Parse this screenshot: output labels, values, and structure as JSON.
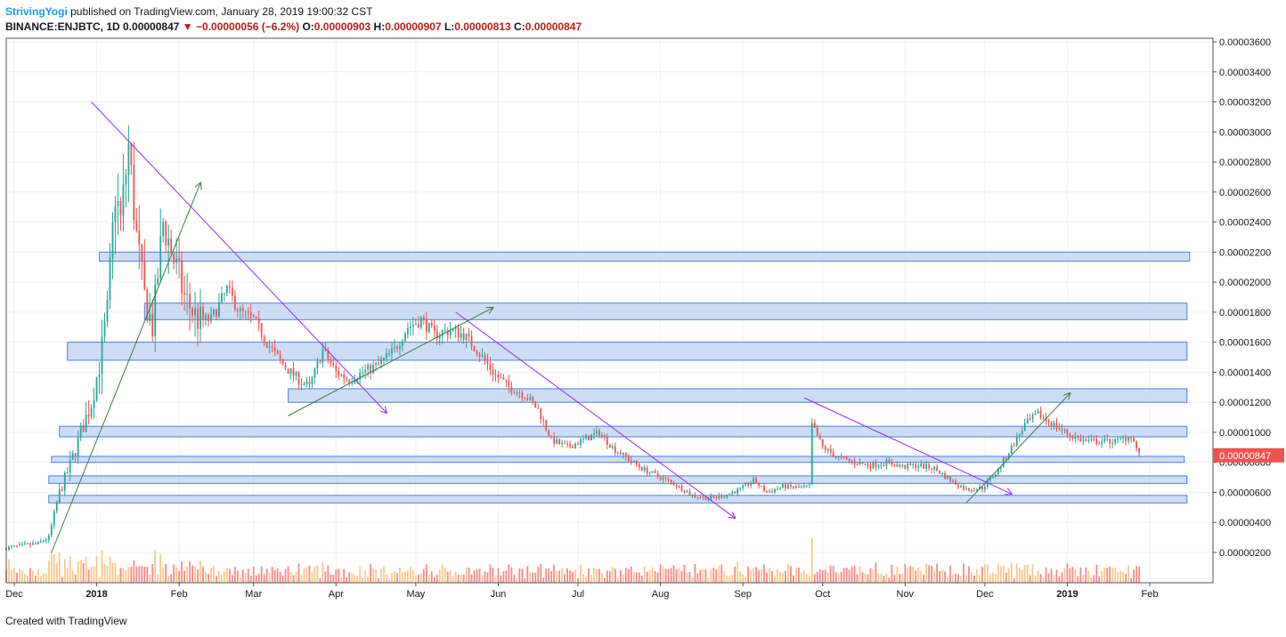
{
  "header": {
    "author": "StrivingYogi",
    "published_text": "published on TradingView.com, January 28, 2019 19:00:32 CST",
    "symbol": "BINANCE:ENJBTC, 1D",
    "last": "0.00000847",
    "change": "−0.00000056 (−6.2%)",
    "open_label": "O:",
    "open": "0.00000903",
    "high_label": "H:",
    "high": "0.00000907",
    "low_label": "L:",
    "low": "0.00000813",
    "close_label": "C:",
    "close": "0.00000847"
  },
  "footer": {
    "created_with": "Created with",
    "brand": "TradingView"
  },
  "colors": {
    "up": "#26a69a",
    "down": "#ef5350",
    "zone_fill": "#c5d7f5",
    "zone_stroke": "#4a7fdb",
    "trend": "#9c27f0",
    "arrow": "#3b7d3b",
    "price_tag": "#ef5350",
    "vol_up": "#f7c98b",
    "vol_down": "#f28b8b"
  },
  "chart_data": {
    "type": "candlestick",
    "y_axis": {
      "min": 0.0,
      "max": 3.65e-05,
      "ticks": [
        "0.00000200",
        "0.00000400",
        "0.00000600",
        "0.00000800",
        "0.00001000",
        "0.00001200",
        "0.00001400",
        "0.00001600",
        "0.00001800",
        "0.00002000",
        "0.00002200",
        "0.00002400",
        "0.00002600",
        "0.00002800",
        "0.00003000",
        "0.00003200",
        "0.00003400",
        "0.00003600"
      ],
      "tick_values": [
        2e-06,
        4e-06,
        6e-06,
        8e-06,
        1e-05,
        1.2e-05,
        1.4e-05,
        1.6e-05,
        1.8e-05,
        2e-05,
        2.2e-05,
        2.4e-05,
        2.6e-05,
        2.8e-05,
        3e-05,
        3.2e-05,
        3.4e-05,
        3.6e-05
      ]
    },
    "x_axis": {
      "labels": [
        {
          "text": "Dec",
          "date": "2017-12-01",
          "bold": false
        },
        {
          "text": "2018",
          "date": "2018-01-01",
          "bold": true
        },
        {
          "text": "Feb",
          "date": "2018-02-01",
          "bold": false
        },
        {
          "text": "Mar",
          "date": "2018-03-01",
          "bold": false
        },
        {
          "text": "Apr",
          "date": "2018-04-01",
          "bold": false
        },
        {
          "text": "May",
          "date": "2018-05-01",
          "bold": false
        },
        {
          "text": "Jun",
          "date": "2018-06-01",
          "bold": false
        },
        {
          "text": "Jul",
          "date": "2018-07-01",
          "bold": false
        },
        {
          "text": "Aug",
          "date": "2018-08-01",
          "bold": false
        },
        {
          "text": "Sep",
          "date": "2018-09-01",
          "bold": false
        },
        {
          "text": "Oct",
          "date": "2018-10-01",
          "bold": false
        },
        {
          "text": "Nov",
          "date": "2018-11-01",
          "bold": false
        },
        {
          "text": "Dec",
          "date": "2018-12-01",
          "bold": false
        },
        {
          "text": "2019",
          "date": "2019-01-01",
          "bold": true
        },
        {
          "text": "Feb",
          "date": "2019-02-01",
          "bold": false
        }
      ],
      "start_date": "2017-11-28",
      "end_date": "2019-02-22"
    },
    "price_path": [
      [
        "2017-11-28",
        2.3e-06
      ],
      [
        "2017-12-10",
        2.6e-06
      ],
      [
        "2017-12-14",
        3e-06
      ],
      [
        "2017-12-18",
        6e-06
      ],
      [
        "2017-12-22",
        7.8e-06
      ],
      [
        "2017-12-26",
        1e-05
      ],
      [
        "2017-12-30",
        1.2e-05
      ],
      [
        "2018-01-02",
        1.45e-05
      ],
      [
        "2018-01-05",
        1.8e-05
      ],
      [
        "2018-01-08",
        2.6e-05
      ],
      [
        "2018-01-10",
        2.4e-05
      ],
      [
        "2018-01-13",
        2.9e-05
      ],
      [
        "2018-01-16",
        2.3e-05
      ],
      [
        "2018-01-19",
        1.9e-05
      ],
      [
        "2018-01-22",
        1.7e-05
      ],
      [
        "2018-01-26",
        2.4e-05
      ],
      [
        "2018-01-30",
        2.15e-05
      ],
      [
        "2018-02-03",
        1.9e-05
      ],
      [
        "2018-02-08",
        1.75e-05
      ],
      [
        "2018-02-13",
        1.75e-05
      ],
      [
        "2018-02-19",
        1.95e-05
      ],
      [
        "2018-02-24",
        1.8e-05
      ],
      [
        "2018-03-01",
        1.75e-05
      ],
      [
        "2018-03-06",
        1.6e-05
      ],
      [
        "2018-03-12",
        1.45e-05
      ],
      [
        "2018-03-18",
        1.35e-05
      ],
      [
        "2018-03-22",
        1.3e-05
      ],
      [
        "2018-03-27",
        1.55e-05
      ],
      [
        "2018-04-01",
        1.4e-05
      ],
      [
        "2018-04-06",
        1.35e-05
      ],
      [
        "2018-04-11",
        1.4e-05
      ],
      [
        "2018-04-17",
        1.45e-05
      ],
      [
        "2018-04-23",
        1.55e-05
      ],
      [
        "2018-04-28",
        1.7e-05
      ],
      [
        "2018-05-03",
        1.75e-05
      ],
      [
        "2018-05-08",
        1.65e-05
      ],
      [
        "2018-05-14",
        1.68e-05
      ],
      [
        "2018-05-19",
        1.65e-05
      ],
      [
        "2018-05-24",
        1.55e-05
      ],
      [
        "2018-05-30",
        1.4e-05
      ],
      [
        "2018-06-05",
        1.3e-05
      ],
      [
        "2018-06-11",
        1.25e-05
      ],
      [
        "2018-06-16",
        1.15e-05
      ],
      [
        "2018-06-21",
        9.5e-06
      ],
      [
        "2018-06-27",
        9e-06
      ],
      [
        "2018-07-03",
        9.5e-06
      ],
      [
        "2018-07-09",
        1e-05
      ],
      [
        "2018-07-14",
        9e-06
      ],
      [
        "2018-07-20",
        8.2e-06
      ],
      [
        "2018-07-26",
        7.5e-06
      ],
      [
        "2018-08-01",
        7e-06
      ],
      [
        "2018-08-07",
        6.5e-06
      ],
      [
        "2018-08-13",
        5.8e-06
      ],
      [
        "2018-08-19",
        5.6e-06
      ],
      [
        "2018-08-25",
        5.8e-06
      ],
      [
        "2018-08-31",
        6.2e-06
      ],
      [
        "2018-09-05",
        6.8e-06
      ],
      [
        "2018-09-10",
        6e-06
      ],
      [
        "2018-09-16",
        6.4e-06
      ],
      [
        "2018-09-22",
        6.3e-06
      ],
      [
        "2018-09-26",
        6.4e-06
      ],
      [
        "2018-09-27",
        1.05e-05
      ],
      [
        "2018-10-01",
        9e-06
      ],
      [
        "2018-10-07",
        8.3e-06
      ],
      [
        "2018-10-13",
        8e-06
      ],
      [
        "2018-10-19",
        7.8e-06
      ],
      [
        "2018-10-25",
        8e-06
      ],
      [
        "2018-10-31",
        7.7e-06
      ],
      [
        "2018-11-06",
        7.8e-06
      ],
      [
        "2018-11-12",
        7.6e-06
      ],
      [
        "2018-11-18",
        6.8e-06
      ],
      [
        "2018-11-24",
        6.2e-06
      ],
      [
        "2018-11-30",
        6.3e-06
      ],
      [
        "2018-12-06",
        7.5e-06
      ],
      [
        "2018-12-11",
        9e-06
      ],
      [
        "2018-12-16",
        1.05e-05
      ],
      [
        "2018-12-21",
        1.12e-05
      ],
      [
        "2018-12-27",
        1.05e-05
      ],
      [
        "2019-01-02",
        9.8e-06
      ],
      [
        "2019-01-08",
        9.4e-06
      ],
      [
        "2019-01-14",
        9.4e-06
      ],
      [
        "2019-01-20",
        9.4e-06
      ],
      [
        "2019-01-25",
        9.8e-06
      ],
      [
        "2019-01-28",
        8.5e-06
      ]
    ],
    "zones": [
      {
        "from": "2018-01-02",
        "to": "2019-02-16",
        "low": 2.14e-05,
        "high": 2.2e-05
      },
      {
        "from": "2018-01-19",
        "to": "2019-02-15",
        "low": 1.75e-05,
        "high": 1.86e-05
      },
      {
        "from": "2017-12-21",
        "to": "2019-02-15",
        "low": 1.48e-05,
        "high": 1.6e-05
      },
      {
        "from": "2018-03-14",
        "to": "2019-02-15",
        "low": 1.2e-05,
        "high": 1.29e-05
      },
      {
        "from": "2017-12-18",
        "to": "2019-02-15",
        "low": 9.7e-06,
        "high": 1.04e-05
      },
      {
        "from": "2017-12-15",
        "to": "2019-02-14",
        "low": 8e-06,
        "high": 8.4e-06
      },
      {
        "from": "2017-12-14",
        "to": "2019-02-15",
        "low": 6.6e-06,
        "high": 7.1e-06
      },
      {
        "from": "2017-12-14",
        "to": "2019-02-15",
        "low": 5.3e-06,
        "high": 5.8e-06
      }
    ],
    "trendlines": [
      {
        "from": [
          "2017-12-30",
          3.2e-05
        ],
        "to": [
          "2018-04-20",
          1.13e-05
        ],
        "color": "trend",
        "arrow": true
      },
      {
        "from": [
          "2018-05-16",
          1.8e-05
        ],
        "to": [
          "2018-08-29",
          4.3e-06
        ],
        "color": "trend",
        "arrow": true
      },
      {
        "from": [
          "2018-09-24",
          1.23e-05
        ],
        "to": [
          "2018-12-11",
          5.9e-06
        ],
        "color": "trend",
        "arrow": true
      },
      {
        "from": [
          "2017-12-15",
          2e-06
        ],
        "to": [
          "2018-02-09",
          2.66e-05
        ],
        "color": "arrow",
        "arrow": true
      },
      {
        "from": [
          "2018-03-14",
          1.11e-05
        ],
        "to": [
          "2018-05-30",
          1.83e-05
        ],
        "color": "arrow",
        "arrow": true
      },
      {
        "from": [
          "2018-11-24",
          5.3e-06
        ],
        "to": [
          "2019-01-02",
          1.26e-05
        ],
        "color": "arrow",
        "arrow": true
      }
    ],
    "last_price_label": "0.00000847",
    "last_price": 8.47e-06
  }
}
